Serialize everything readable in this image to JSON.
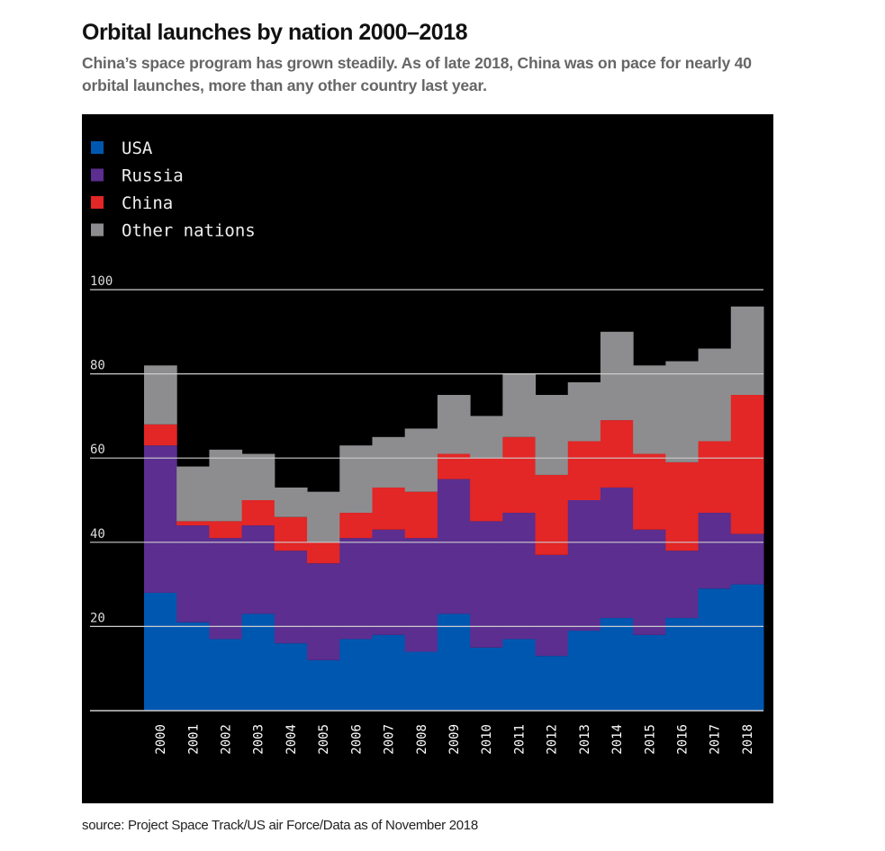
{
  "title": "Orbital launches by nation 2000–2018",
  "subtitle": "China’s space program has grown steadily. As of late 2018, China was on pace for nearly 40 orbital launches, more than any other country last year.",
  "source": "source: Project Space Track/US air Force/Data as of November 2018",
  "chart_data": {
    "type": "bar",
    "stacked": true,
    "title": "Orbital launches by nation 2000–2018",
    "xlabel": "",
    "ylabel": "",
    "ylim": [
      0,
      100
    ],
    "yticks": [
      20,
      40,
      60,
      80,
      100
    ],
    "grid": true,
    "legend_position": "top-left",
    "categories": [
      "2000",
      "2001",
      "2002",
      "2003",
      "2004",
      "2005",
      "2006",
      "2007",
      "2008",
      "2009",
      "2010",
      "2011",
      "2012",
      "2013",
      "2014",
      "2015",
      "2016",
      "2017",
      "2018"
    ],
    "series": [
      {
        "name": "USA",
        "color": "#0057b0",
        "values": [
          28,
          21,
          17,
          23,
          16,
          12,
          17,
          18,
          14,
          23,
          15,
          17,
          13,
          19,
          22,
          18,
          22,
          29,
          30
        ]
      },
      {
        "name": "Russia",
        "color": "#5b2e90",
        "values": [
          35,
          23,
          24,
          21,
          22,
          23,
          24,
          25,
          27,
          32,
          30,
          30,
          24,
          31,
          31,
          25,
          16,
          18,
          12
        ]
      },
      {
        "name": "China",
        "color": "#e32626",
        "values": [
          5,
          1,
          4,
          6,
          8,
          5,
          6,
          10,
          11,
          6,
          15,
          18,
          19,
          14,
          16,
          18,
          21,
          17,
          33
        ]
      },
      {
        "name": "Other nations",
        "color": "#8d8d8f",
        "values": [
          14,
          13,
          17,
          11,
          7,
          12,
          16,
          12,
          15,
          14,
          10,
          15,
          19,
          14,
          21,
          21,
          24,
          22,
          21
        ]
      }
    ]
  }
}
